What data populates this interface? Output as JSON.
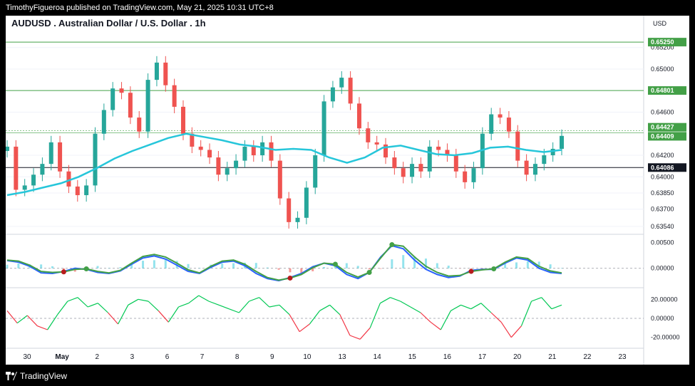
{
  "header": {
    "publisher": "TimothyFigueroa published on TradingView.com, May 21, 2025 10:31 UTC+8"
  },
  "footer": {
    "brand": "TradingView"
  },
  "chart_meta": {
    "symbol_title": "AUDUSD . Australian Dollar / U.S. Dollar . 1h",
    "currency": "USD"
  },
  "chart_data": [
    {
      "type": "line",
      "panel": "price",
      "title": "AUDUSD . Australian Dollar / U.S. Dollar . 1h",
      "currency": "USD",
      "x_ticks": [
        "30",
        "May",
        "2",
        "3",
        "6",
        "7",
        "8",
        "9",
        "10",
        "13",
        "14",
        "15",
        "16",
        "17",
        "20",
        "21",
        "22",
        "23"
      ],
      "y_ticks": [
        "0.65200",
        "0.65000",
        "0.64600",
        "0.64200",
        "0.64000",
        "0.63850",
        "0.63700",
        "0.63540"
      ],
      "ylim": [
        0.6348,
        0.6535
      ],
      "price_series": {
        "description": "candle closes, approximate",
        "values": [
          0.6428,
          0.6388,
          0.6392,
          0.6402,
          0.6412,
          0.6432,
          0.6405,
          0.6391,
          0.6383,
          0.6392,
          0.644,
          0.6462,
          0.6482,
          0.6478,
          0.6455,
          0.6442,
          0.649,
          0.6506,
          0.6485,
          0.6465,
          0.644,
          0.6428,
          0.6425,
          0.6418,
          0.6402,
          0.6408,
          0.6415,
          0.6428,
          0.642,
          0.6432,
          0.6415,
          0.638,
          0.6358,
          0.6362,
          0.639,
          0.642,
          0.647,
          0.6483,
          0.6492,
          0.6468,
          0.6445,
          0.6432,
          0.643,
          0.6418,
          0.6408,
          0.64,
          0.6412,
          0.6405,
          0.6428,
          0.6425,
          0.642,
          0.6405,
          0.6395,
          0.6408,
          0.644,
          0.6458,
          0.6455,
          0.6442,
          0.6415,
          0.6402,
          0.6412,
          0.642,
          0.6426,
          0.6438
        ]
      },
      "moving_average": {
        "values": [
          0.6383,
          0.6386,
          0.639,
          0.6394,
          0.64,
          0.6408,
          0.6417,
          0.6424,
          0.643,
          0.6436,
          0.644,
          0.6437,
          0.6434,
          0.643,
          0.6428,
          0.6425,
          0.6426,
          0.6425,
          0.6418,
          0.6413,
          0.6418,
          0.6427,
          0.6429,
          0.6425,
          0.6421,
          0.642,
          0.6422,
          0.6427,
          0.6428,
          0.6425,
          0.6423,
          0.6425
        ]
      },
      "horizontal_levels": [
        {
          "price": 0.6525,
          "label": "0.65250",
          "color": "#43a047"
        },
        {
          "price": 0.64801,
          "label": "0.64801",
          "color": "#43a047"
        },
        {
          "price": 0.64427,
          "label": "0.64427",
          "color": "#43a047"
        },
        {
          "price": 0.64409,
          "label": "0.64409",
          "color": "#43a047"
        },
        {
          "price": 0.64086,
          "label": "0.64086",
          "color": "#131722"
        }
      ],
      "colors": {
        "up": "#26a69a",
        "down": "#ef5350",
        "ma": "#26c6da"
      }
    },
    {
      "type": "line",
      "panel": "oscillator",
      "y_ticks": [
        "0.00500",
        "0.00000"
      ],
      "ylim": [
        -0.0035,
        0.0062
      ],
      "series": [
        {
          "color": "#2962ff",
          "values": [
            0.0015,
            0.0012,
            0.0004,
            -0.0009,
            -0.001,
            -0.0006,
            0.0,
            -0.0002,
            -0.0008,
            -0.001,
            -0.0005,
            0.0008,
            0.002,
            0.0024,
            0.0018,
            0.0006,
            -0.0006,
            -0.001,
            0.0002,
            0.0012,
            0.0014,
            0.0005,
            -0.001,
            -0.002,
            -0.0024,
            -0.0018,
            -0.001,
            0.0003,
            0.001,
            0.0005,
            -0.0012,
            -0.002,
            -0.0008,
            0.0022,
            0.0044,
            0.0038,
            0.0016,
            -0.0002,
            -0.0012,
            -0.0018,
            -0.0015,
            -0.0004,
            -0.0002,
            -0.0002,
            0.001,
            0.002,
            0.0016,
            0.0,
            -0.0008,
            -0.001
          ]
        },
        {
          "color": "#43a047",
          "values": [
            0.0016,
            0.0014,
            0.0006,
            -0.0006,
            -0.0008,
            -0.0007,
            -0.0002,
            -0.0001,
            -0.0006,
            -0.0009,
            -0.0004,
            0.001,
            0.0023,
            0.0027,
            0.0022,
            0.001,
            -0.0003,
            -0.0009,
            0.0004,
            0.0014,
            0.0016,
            0.0008,
            -0.0006,
            -0.0018,
            -0.0023,
            -0.0019,
            -0.0012,
            0.0001,
            0.001,
            0.0008,
            -0.0008,
            -0.0017,
            -0.0008,
            0.002,
            0.0046,
            0.0043,
            0.0022,
            0.0004,
            -0.0008,
            -0.0015,
            -0.0014,
            -0.0006,
            -0.0003,
            -0.0001,
            0.0012,
            0.0022,
            0.0019,
            0.0004,
            -0.0005,
            -0.0009
          ]
        }
      ]
    },
    {
      "type": "line",
      "panel": "momentum",
      "y_ticks": [
        "20.00000",
        "0.00000",
        "-20.00000"
      ],
      "ylim": [
        -30,
        30
      ],
      "series": [
        {
          "name": "",
          "color": "#00c853",
          "values": [
            8,
            -5,
            3,
            -8,
            -12,
            4,
            18,
            22,
            12,
            16,
            6,
            -6,
            14,
            20,
            18,
            8,
            -4,
            12,
            16,
            24,
            18,
            14,
            10,
            6,
            18,
            22,
            12,
            14,
            4,
            -14,
            -6,
            8,
            14,
            4,
            -18,
            -22,
            -10,
            16,
            22,
            18,
            12,
            6,
            -4,
            -12,
            8,
            14,
            10,
            16,
            6,
            -4,
            -20,
            -8,
            18,
            22,
            10,
            14
          ]
        }
      ]
    }
  ]
}
